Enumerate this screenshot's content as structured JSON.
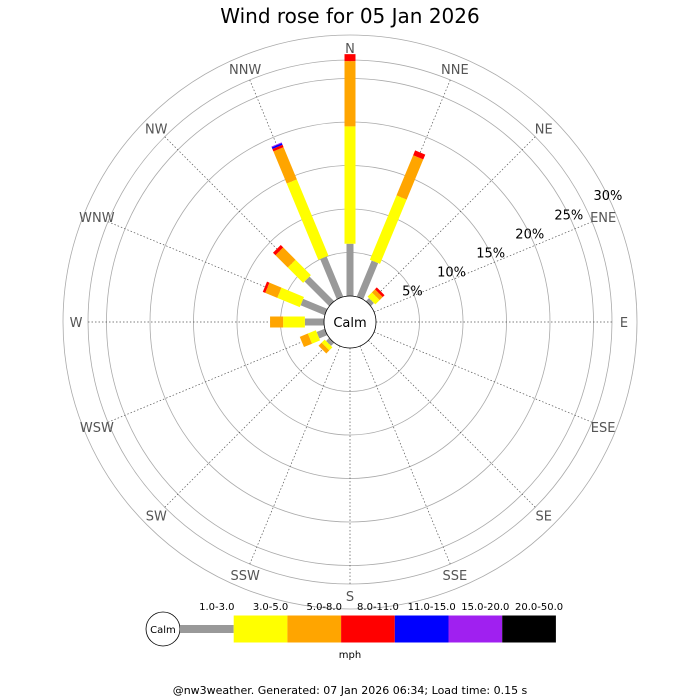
{
  "title": "Wind rose for 05 Jan 2026",
  "footer": "@nw3weather. Generated: 07 Jan 2026 06:34; Load time: 0.15 s",
  "chart_data": {
    "type": "wind-rose",
    "title": "Wind rose for 05 Jan 2026",
    "directions": [
      "N",
      "NNE",
      "NE",
      "ENE",
      "E",
      "ESE",
      "SE",
      "SSE",
      "S",
      "SSW",
      "SW",
      "WSW",
      "W",
      "WNW",
      "NW",
      "NNW"
    ],
    "ring_labels": [
      "5%",
      "10%",
      "15%",
      "20%",
      "25%",
      "30%"
    ],
    "ring_values": [
      5,
      10,
      15,
      20,
      25,
      30
    ],
    "center_label": "Calm",
    "unit": "mph",
    "speed_bins": [
      {
        "name": "1.0-3.0",
        "color": "#999999"
      },
      {
        "name": "3.0-5.0",
        "color": "#ffff00"
      },
      {
        "name": "5.0-8.0",
        "color": "#ffa500"
      },
      {
        "name": "8.0-11.0",
        "color": "#ff0000"
      },
      {
        "name": "11.0-15.0",
        "color": "#0000ff"
      },
      {
        "name": "15.0-20.0",
        "color": "#a020f0"
      },
      {
        "name": "20.0-50.0",
        "color": "#000000"
      }
    ],
    "values": {
      "N": [
        6.0,
        13.5,
        7.5,
        0.8,
        0,
        0,
        0
      ],
      "NNE": [
        4.5,
        8.0,
        5.0,
        0.6,
        0,
        0,
        0
      ],
      "NE": [
        0.5,
        0.7,
        0.5,
        0.3,
        0,
        0,
        0
      ],
      "ENE": [
        0,
        0,
        0,
        0,
        0,
        0,
        0
      ],
      "E": [
        0,
        0,
        0,
        0,
        0,
        0,
        0
      ],
      "ESE": [
        0,
        0,
        0,
        0,
        0,
        0,
        0
      ],
      "SE": [
        0,
        0,
        0,
        0,
        0,
        0,
        0
      ],
      "SSE": [
        0,
        0,
        0,
        0,
        0,
        0,
        0
      ],
      "S": [
        0,
        0,
        0,
        0,
        0,
        0,
        0
      ],
      "SSW": [
        0,
        0,
        0,
        0,
        0,
        0,
        0
      ],
      "SW": [
        0.5,
        0.5,
        0.5,
        0,
        0,
        0,
        0
      ],
      "WSW": [
        1.0,
        1.0,
        1.0,
        0,
        0,
        0,
        0
      ],
      "W": [
        2.2,
        2.5,
        1.5,
        0,
        0,
        0,
        0
      ],
      "WNW": [
        3.0,
        2.8,
        1.5,
        0.3,
        0,
        0,
        0
      ],
      "NW": [
        4.0,
        2.5,
        2.0,
        0.4,
        0,
        0,
        0
      ],
      "NNW": [
        5.0,
        9.5,
        4.0,
        0.3,
        0.2,
        0.1,
        0
      ]
    },
    "grid": true
  }
}
